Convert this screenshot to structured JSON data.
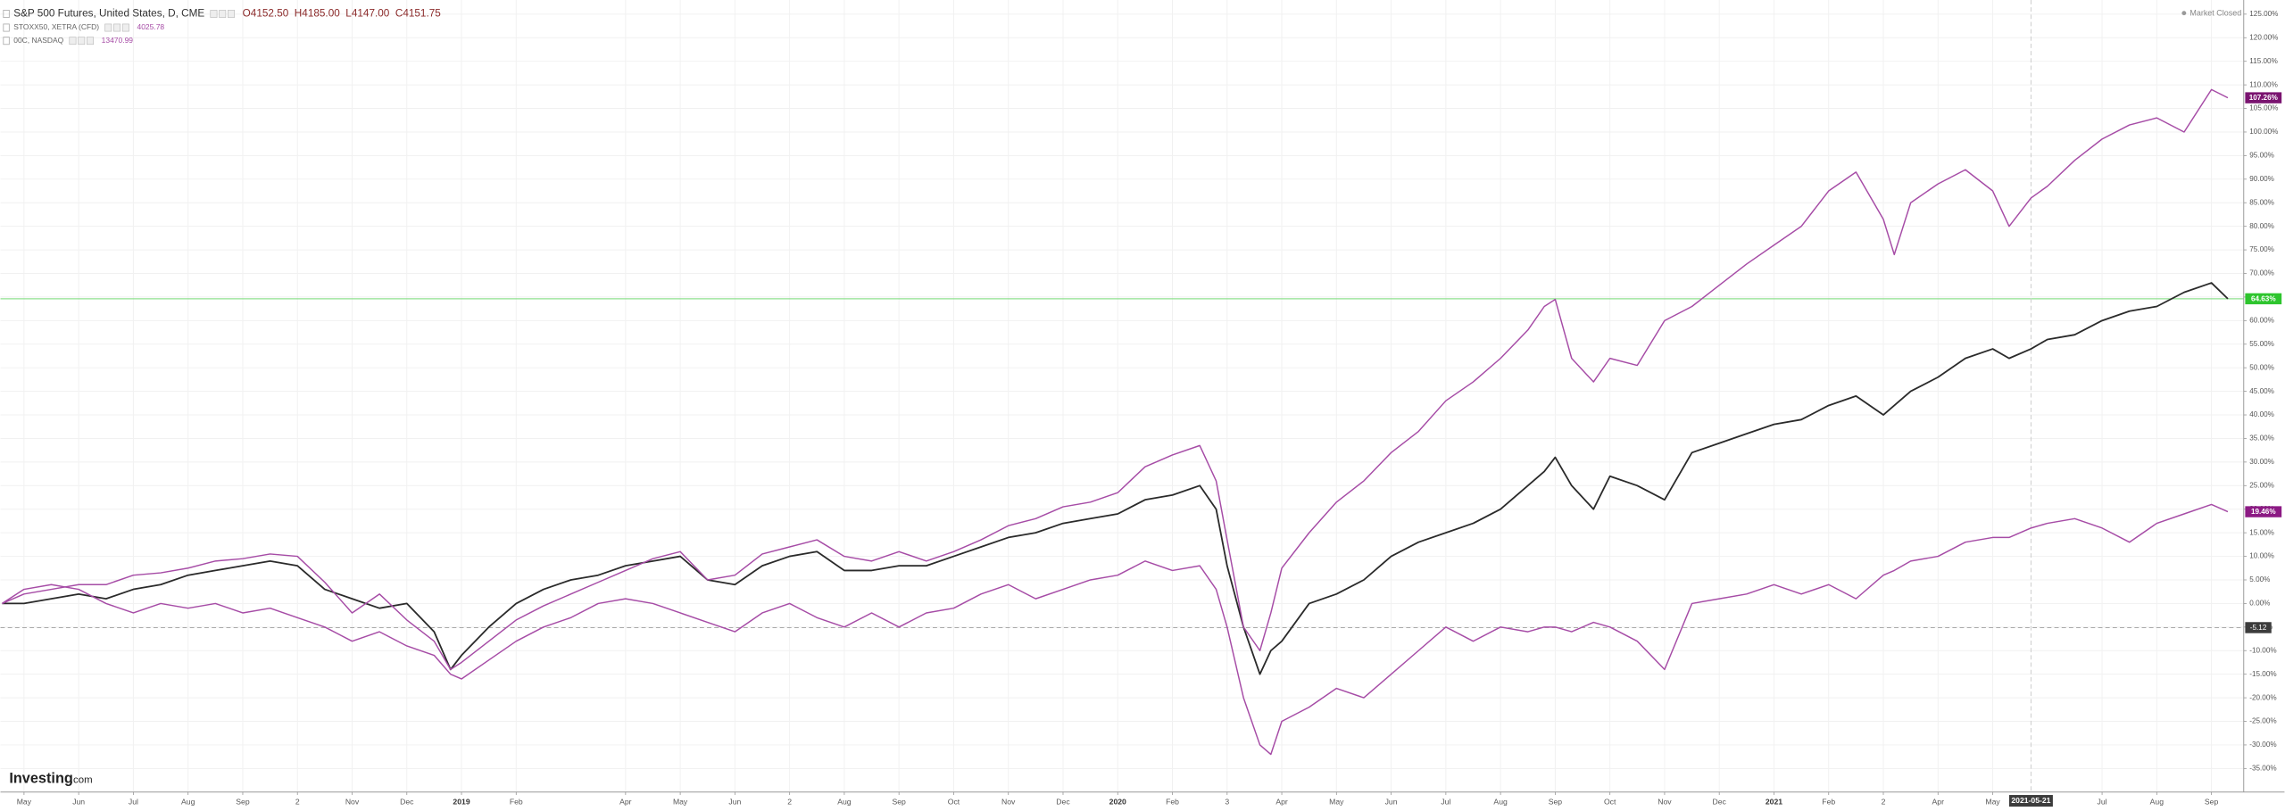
{
  "chart_data": {
    "type": "line",
    "legend": [
      {
        "name": "S&P 500 Futures, United States, D, CME",
        "prices": [
          "O4152.50",
          "H4185.00",
          "L4147.00",
          "C4151.75"
        ]
      },
      {
        "name": "STOXX50, XETRA (CFD)",
        "prices": [
          "4025.78"
        ]
      },
      {
        "name": "00C, NASDAQ",
        "prices": [
          "13470.99"
        ]
      }
    ],
    "status": "Market Closed",
    "logo": {
      "main": "Investing",
      "suffix": ".com"
    },
    "x": [
      -0.4,
      0,
      0.5,
      1,
      1.5,
      2,
      2.5,
      3,
      3.5,
      4,
      4.5,
      5,
      5.5,
      6,
      6.5,
      7,
      7.5,
      7.8,
      8,
      8.5,
      9,
      9.5,
      10,
      10.5,
      11,
      11.5,
      12,
      12.5,
      13,
      13.5,
      14,
      14.5,
      15,
      15.5,
      16,
      16.5,
      17,
      17.5,
      18,
      18.5,
      19,
      19.5,
      20,
      20.5,
      21,
      21.5,
      21.8,
      22,
      22.3,
      22.6,
      22.8,
      23,
      23.5,
      24,
      24.5,
      25,
      25.5,
      26,
      26.5,
      27,
      27.5,
      27.8,
      28,
      28.3,
      28.7,
      29,
      29.5,
      30,
      30.5,
      31,
      31.5,
      32,
      32.5,
      33,
      33.5,
      34,
      34.2,
      34.5,
      35,
      35.5,
      36,
      36.3,
      36.7,
      37,
      37.5,
      38,
      38.5,
      39,
      39.5,
      40,
      40.3
    ],
    "series": [
      {
        "name": "S&P 500 Futures",
        "color": "#2a2a2a",
        "badge_color": "#2ec52e",
        "end_label": "64.63%",
        "values": [
          0,
          0,
          1,
          2,
          1,
          3,
          4,
          6,
          7,
          8,
          9,
          8,
          3,
          1,
          -1,
          0,
          -6,
          -14,
          -11,
          -5,
          0,
          3,
          5,
          6,
          8,
          9,
          10,
          5,
          4,
          8,
          10,
          11,
          7,
          7,
          8,
          8,
          10,
          12,
          14,
          15,
          17,
          18,
          19,
          22,
          23,
          25,
          20,
          8,
          -5,
          -15,
          -10,
          -8,
          0,
          2,
          5,
          10,
          13,
          15,
          17,
          20,
          25,
          28,
          31,
          25,
          20,
          27,
          25,
          22,
          32,
          34,
          36,
          38,
          39,
          42,
          44,
          40,
          42,
          45,
          48,
          52,
          54,
          52,
          54,
          56,
          57,
          60,
          62,
          63,
          66,
          68,
          64.63
        ]
      },
      {
        "name": "STOXX50",
        "color": "#a64ca6",
        "badge_color": "#8c1a84",
        "end_label": "19.46%",
        "values": [
          0,
          3,
          4,
          3,
          0,
          -2,
          0,
          -1,
          0,
          -2,
          -1,
          -3,
          -5,
          -8,
          -6,
          -9,
          -11,
          -15,
          -16,
          -12,
          -8,
          -5,
          -3,
          0,
          1,
          0,
          -2,
          -4,
          -6,
          -2,
          0,
          -3,
          -5,
          -2,
          -5,
          -2,
          -1,
          2,
          4,
          1,
          3,
          5,
          6,
          9,
          7,
          8,
          3,
          -5,
          -20,
          -30,
          -32,
          -25,
          -22,
          -18,
          -20,
          -15,
          -10,
          -5,
          -8,
          -5,
          -6,
          -5,
          -5,
          -6,
          -4,
          -5,
          -8,
          -14,
          0,
          1,
          2,
          4,
          2,
          4,
          1,
          6,
          7,
          9,
          10,
          13,
          14,
          14,
          16,
          17,
          18,
          16,
          13,
          17,
          19,
          21,
          19.46
        ]
      },
      {
        "name": "00C",
        "color": "#a64ca6",
        "badge_color": "#7a1470",
        "end_label": "107.26%",
        "values": [
          0,
          2,
          3,
          4,
          4,
          6,
          6.5,
          7.5,
          9,
          9.5,
          10.5,
          10,
          4.5,
          -2,
          2,
          -3.5,
          -8,
          -14,
          -12.5,
          -8,
          -3.5,
          -0.5,
          2,
          4.5,
          7,
          9.5,
          11,
          5,
          6,
          10.5,
          12,
          13.5,
          10,
          9,
          11,
          9,
          11,
          13.5,
          16.5,
          18,
          20.5,
          21.5,
          23.5,
          29,
          31.5,
          33.5,
          26,
          13.5,
          -5,
          -10,
          -2,
          7.5,
          15,
          21.5,
          26,
          32,
          36.5,
          43,
          47,
          52,
          58,
          63,
          64.5,
          52,
          47,
          52,
          50.5,
          60,
          63,
          67.5,
          72,
          76,
          80,
          87.5,
          91.5,
          81.5,
          74,
          85,
          89,
          92,
          87.5,
          80,
          86,
          88.5,
          94,
          98.5,
          101.5,
          103,
          100,
          109,
          107.26
        ]
      }
    ],
    "hline": {
      "value": 64.63,
      "color": "#8fe08f"
    },
    "crosshair": {
      "x": 36.7,
      "y": -5.12,
      "x_label": "2021-05-21",
      "y_label": "-5.12"
    },
    "xlim": [
      -0.43,
      40.59
    ],
    "ylim": [
      -40,
      128
    ],
    "grid": true,
    "xticks": [
      {
        "value": 0,
        "label": "May"
      },
      {
        "value": 1,
        "label": "Jun"
      },
      {
        "value": 2,
        "label": "Jul"
      },
      {
        "value": 3,
        "label": "Aug"
      },
      {
        "value": 4,
        "label": "Sep"
      },
      {
        "value": 5,
        "label": "2"
      },
      {
        "value": 6,
        "label": "Nov"
      },
      {
        "value": 7,
        "label": "Dec"
      },
      {
        "value": 8,
        "label": "2019"
      },
      {
        "value": 9,
        "label": "Feb"
      },
      {
        "value": 11,
        "label": "Apr"
      },
      {
        "value": 12,
        "label": "May"
      },
      {
        "value": 13,
        "label": "Jun"
      },
      {
        "value": 14,
        "label": "2"
      },
      {
        "value": 15,
        "label": "Aug"
      },
      {
        "value": 16,
        "label": "Sep"
      },
      {
        "value": 17,
        "label": "Oct"
      },
      {
        "value": 18,
        "label": "Nov"
      },
      {
        "value": 19,
        "label": "Dec"
      },
      {
        "value": 20,
        "label": "2020"
      },
      {
        "value": 21,
        "label": "Feb"
      },
      {
        "value": 22,
        "label": "3"
      },
      {
        "value": 23,
        "label": "Apr"
      },
      {
        "value": 24,
        "label": "May"
      },
      {
        "value": 25,
        "label": "Jun"
      },
      {
        "value": 26,
        "label": "Jul"
      },
      {
        "value": 27,
        "label": "Aug"
      },
      {
        "value": 28,
        "label": "Sep"
      },
      {
        "value": 29,
        "label": "Oct"
      },
      {
        "value": 30,
        "label": "Nov"
      },
      {
        "value": 31,
        "label": "Dec"
      },
      {
        "value": 32,
        "label": "2021"
      },
      {
        "value": 33,
        "label": "Feb"
      },
      {
        "value": 34,
        "label": "2"
      },
      {
        "value": 35,
        "label": "Apr"
      },
      {
        "value": 36,
        "label": "May"
      },
      {
        "value": 38,
        "label": "Jul"
      },
      {
        "value": 39,
        "label": "Aug"
      },
      {
        "value": 40,
        "label": "Sep"
      }
    ],
    "yticks": [
      {
        "value": -35,
        "label": "-35.00%"
      },
      {
        "value": -30,
        "label": "-30.00%"
      },
      {
        "value": -25,
        "label": "-25.00%"
      },
      {
        "value": -20,
        "label": "-20.00%"
      },
      {
        "value": -15,
        "label": "-15.00%"
      },
      {
        "value": -10,
        "label": "-10.00%"
      },
      {
        "value": -5,
        "label": "-5.00%"
      },
      {
        "value": 0,
        "label": "0.00%"
      },
      {
        "value": 5,
        "label": "5.00%"
      },
      {
        "value": 10,
        "label": "10.00%"
      },
      {
        "value": 15,
        "label": "15.00%"
      },
      {
        "value": 20,
        "label": "20.00%"
      },
      {
        "value": 25,
        "label": "25.00%"
      },
      {
        "value": 30,
        "label": "30.00%"
      },
      {
        "value": 35,
        "label": "35.00%"
      },
      {
        "value": 40,
        "label": "40.00%"
      },
      {
        "value": 45,
        "label": "45.00%"
      },
      {
        "value": 50,
        "label": "50.00%"
      },
      {
        "value": 55,
        "label": "55.00%"
      },
      {
        "value": 60,
        "label": "60.00%"
      },
      {
        "value": 65,
        "label": "65.00%"
      },
      {
        "value": 70,
        "label": "70.00%"
      },
      {
        "value": 75,
        "label": "75.00%"
      },
      {
        "value": 80,
        "label": "80.00%"
      },
      {
        "value": 85,
        "label": "85.00%"
      },
      {
        "value": 90,
        "label": "90.00%"
      },
      {
        "value": 95,
        "label": "95.00%"
      },
      {
        "value": 100,
        "label": "100.00%"
      },
      {
        "value": 105,
        "label": "105.00%"
      },
      {
        "value": 110,
        "label": "110.00%"
      },
      {
        "value": 115,
        "label": "115.00%"
      },
      {
        "value": 120,
        "label": "120.00%"
      },
      {
        "value": 125,
        "label": "125.00%"
      }
    ]
  }
}
